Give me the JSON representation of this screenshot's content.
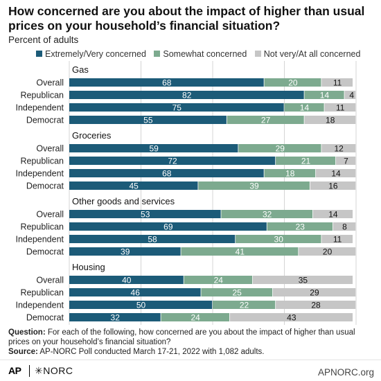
{
  "title": "How concerned are you about the impact of higher than usual prices on your household’s financial situation?",
  "subtitle": "Percent of adults",
  "colors": {
    "extremely": "#1c5b78",
    "somewhat": "#7daa8f",
    "not": "#c6c6c6"
  },
  "chart_data": {
    "type": "bar",
    "orientation": "horizontal",
    "stacked": true,
    "xlim": [
      0,
      100
    ],
    "x_ticks": [
      "0",
      "25",
      "50",
      "75",
      "100"
    ],
    "x_unit": "%",
    "grid": true,
    "legend_position": "top",
    "series_names": [
      "Extremely/Very concerned",
      "Somewhat concerned",
      "Not very/At all concerned"
    ],
    "groups": [
      {
        "name": "Gas",
        "rows": [
          {
            "label": "Overall",
            "values": [
              68,
              20,
              11
            ]
          },
          {
            "label": "Republican",
            "values": [
              82,
              14,
              4
            ]
          },
          {
            "label": "Independent",
            "values": [
              75,
              14,
              11
            ]
          },
          {
            "label": "Democrat",
            "values": [
              55,
              27,
              18
            ]
          }
        ]
      },
      {
        "name": "Groceries",
        "rows": [
          {
            "label": "Overall",
            "values": [
              59,
              29,
              12
            ]
          },
          {
            "label": "Republican",
            "values": [
              72,
              21,
              7
            ]
          },
          {
            "label": "Independent",
            "values": [
              68,
              18,
              14
            ]
          },
          {
            "label": "Democrat",
            "values": [
              45,
              39,
              16
            ]
          }
        ]
      },
      {
        "name": "Other goods and services",
        "rows": [
          {
            "label": "Overall",
            "values": [
              53,
              32,
              14
            ]
          },
          {
            "label": "Republican",
            "values": [
              69,
              23,
              8
            ]
          },
          {
            "label": "Independent",
            "values": [
              58,
              30,
              11
            ]
          },
          {
            "label": "Democrat",
            "values": [
              39,
              41,
              20
            ]
          }
        ]
      },
      {
        "name": "Housing",
        "rows": [
          {
            "label": "Overall",
            "values": [
              40,
              24,
              35
            ]
          },
          {
            "label": "Republican",
            "values": [
              46,
              25,
              29
            ]
          },
          {
            "label": "Independent",
            "values": [
              50,
              22,
              28
            ]
          },
          {
            "label": "Democrat",
            "values": [
              32,
              24,
              43
            ]
          }
        ]
      }
    ]
  },
  "footer": {
    "question_label": "Question:",
    "question_text": "For each of the following, how concerned are you about the impact of higher than usual prices on your household’s financial situation?",
    "source_label": "Source:",
    "source_text": "AP-NORC Poll conducted March 17-21, 2022 with 1,082 adults."
  },
  "logos": {
    "ap": "AP",
    "norc": "NORC"
  },
  "site": "APNORC.org"
}
